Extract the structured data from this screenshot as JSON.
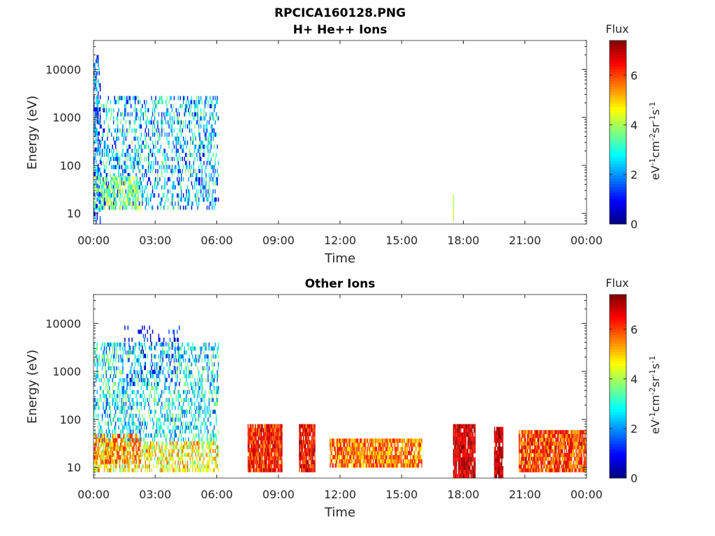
{
  "figure_title": "RPCICA160128.PNG",
  "chart_data": [
    {
      "type": "heatmap",
      "title": "H+ He++ Ions",
      "xlabel": "Time",
      "ylabel": "Energy (eV)",
      "xticks": [
        "00:00",
        "03:00",
        "06:00",
        "09:00",
        "12:00",
        "15:00",
        "18:00",
        "21:00",
        "00:00"
      ],
      "xlim_hours": [
        0,
        24
      ],
      "yscale": "log",
      "ylim": [
        6,
        40000
      ],
      "yticks": [
        10,
        100,
        1000,
        10000
      ],
      "ytick_labels": [
        "10",
        "100",
        "1000",
        "10000"
      ],
      "colorbar": {
        "title": "Flux",
        "unit_base": "eV",
        "unit_sup1": "-1",
        "unit_mid1": "cm",
        "unit_sup2": "-2",
        "unit_mid2": "sr",
        "unit_sup3": "-1",
        "unit_mid3": "s",
        "unit_sup4": "-1",
        "range": [
          0,
          7.4
        ],
        "ticks": [
          0,
          2,
          4,
          6
        ],
        "tick_labels": [
          "0",
          "2",
          "4",
          "6"
        ]
      },
      "blocks": [
        {
          "t0": 0.0,
          "t1": 6.1,
          "e0": 12,
          "e1": 2800,
          "mean": 2.3,
          "spread": 1.6,
          "density": 0.33
        },
        {
          "t0": 0.0,
          "t1": 2.3,
          "e0": 12,
          "e1": 60,
          "mean": 3.8,
          "spread": 0.9,
          "density": 0.5
        },
        {
          "t0": 0.0,
          "t1": 0.35,
          "e0": 6,
          "e1": 20000,
          "mean": 1.6,
          "spread": 1.2,
          "density": 0.35
        },
        {
          "t0": 17.5,
          "t1": 17.55,
          "e0": 7,
          "e1": 25,
          "mean": 4.2,
          "spread": 0.3,
          "density": 1.0
        }
      ]
    },
    {
      "type": "heatmap",
      "title": "Other Ions",
      "xlabel": "Time",
      "ylabel": "Energy (eV)",
      "xticks": [
        "00:00",
        "03:00",
        "06:00",
        "09:00",
        "12:00",
        "15:00",
        "18:00",
        "21:00",
        "00:00"
      ],
      "xlim_hours": [
        0,
        24
      ],
      "yscale": "log",
      "ylim": [
        6,
        40000
      ],
      "yticks": [
        10,
        100,
        1000,
        10000
      ],
      "ytick_labels": [
        "10",
        "100",
        "1000",
        "10000"
      ],
      "colorbar": {
        "title": "Flux",
        "unit_base": "eV",
        "unit_sup1": "-1",
        "unit_mid1": "cm",
        "unit_sup2": "-2",
        "unit_mid2": "sr",
        "unit_sup3": "-1",
        "unit_mid3": "s",
        "unit_sup4": "-1",
        "range": [
          0,
          7.4
        ],
        "ticks": [
          0,
          2,
          4,
          6
        ],
        "tick_labels": [
          "0",
          "2",
          "4",
          "6"
        ]
      },
      "blocks": [
        {
          "t0": 0.0,
          "t1": 6.1,
          "e0": 35,
          "e1": 4000,
          "mean": 2.7,
          "spread": 1.4,
          "density": 0.38
        },
        {
          "t0": 0.0,
          "t1": 6.1,
          "e0": 8,
          "e1": 35,
          "mean": 4.6,
          "spread": 1.3,
          "density": 0.55
        },
        {
          "t0": 0.0,
          "t1": 2.3,
          "e0": 12,
          "e1": 50,
          "mean": 5.6,
          "spread": 1.0,
          "density": 0.6
        },
        {
          "t0": 1.5,
          "t1": 4.2,
          "e0": 500,
          "e1": 9000,
          "mean": 1.0,
          "spread": 0.8,
          "density": 0.12
        },
        {
          "t0": 7.5,
          "t1": 9.2,
          "e0": 8,
          "e1": 80,
          "mean": 6.3,
          "spread": 0.9,
          "density": 0.95
        },
        {
          "t0": 10.0,
          "t1": 10.8,
          "e0": 8,
          "e1": 80,
          "mean": 6.5,
          "spread": 0.9,
          "density": 0.95
        },
        {
          "t0": 11.5,
          "t1": 16.0,
          "e0": 10,
          "e1": 40,
          "mean": 5.6,
          "spread": 1.0,
          "density": 0.85
        },
        {
          "t0": 17.5,
          "t1": 18.6,
          "e0": 6,
          "e1": 80,
          "mean": 6.8,
          "spread": 0.7,
          "density": 0.95
        },
        {
          "t0": 19.5,
          "t1": 19.95,
          "e0": 6,
          "e1": 70,
          "mean": 6.9,
          "spread": 0.7,
          "density": 0.85
        },
        {
          "t0": 20.7,
          "t1": 24.0,
          "e0": 8,
          "e1": 60,
          "mean": 6.0,
          "spread": 1.0,
          "density": 0.9
        }
      ]
    }
  ]
}
